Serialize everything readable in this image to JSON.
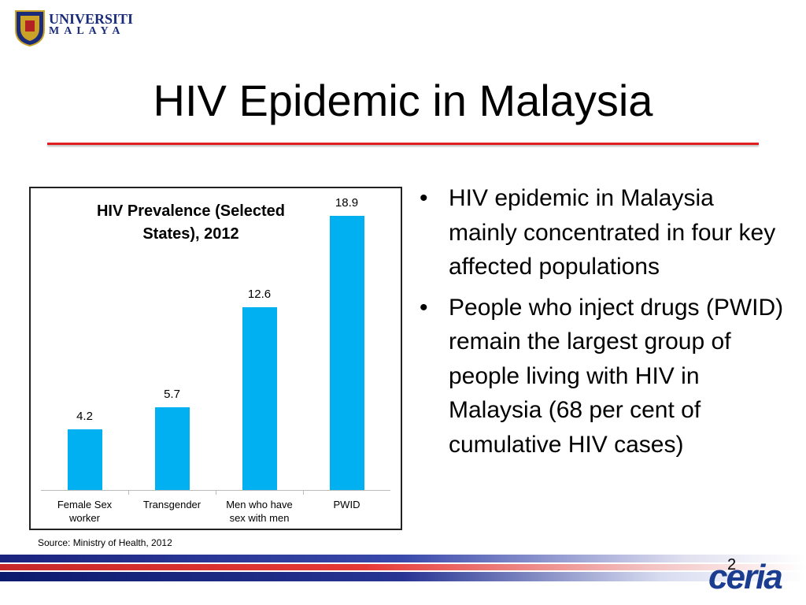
{
  "logo": {
    "name": "UNIVERSITI",
    "sub": "MALAYA"
  },
  "title": "HIV Epidemic in Malaysia",
  "chart_data": {
    "type": "bar",
    "title": "HIV Prevalence (Selected States), 2012",
    "categories": [
      "Female Sex worker",
      "Transgender",
      "Men who have sex with men",
      "PWID"
    ],
    "values": [
      4.2,
      5.7,
      12.6,
      18.9
    ],
    "color": "#00b0f0"
  },
  "source": "Source: Ministry of Health, 2012",
  "bullets": [
    "HIV epidemic in Malaysia mainly concentrated in four key affected populations",
    "People who inject drugs (PWID) remain the largest group of people living with HIV in Malaysia (68 per cent of cumulative HIV cases)"
  ],
  "page_number": "2",
  "footer_logo": "ceria"
}
